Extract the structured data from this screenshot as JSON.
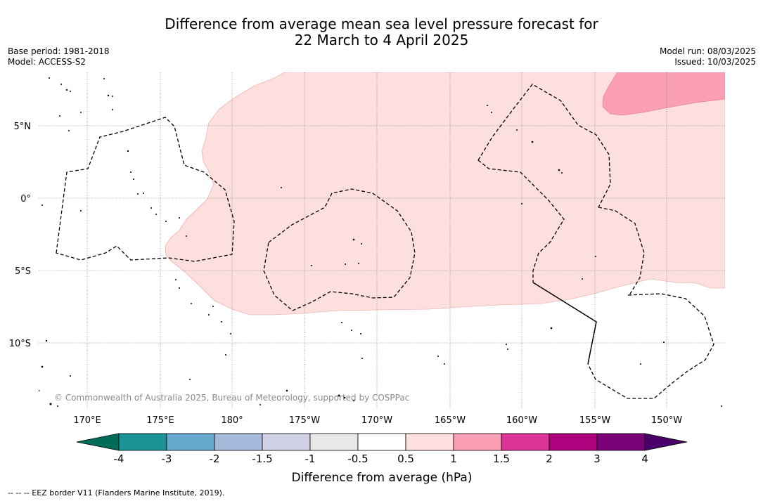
{
  "title": {
    "line1": "Difference from average mean sea level pressure forecast for",
    "line2": "22 March to 4 April 2025"
  },
  "meta_left": {
    "base_period": "Base period: 1981-2018",
    "model": "Model: ACCESS-S2"
  },
  "meta_right": {
    "model_run": "Model run: 08/03/2025",
    "issued": "Issued: 10/03/2025"
  },
  "map": {
    "lat_labels": [
      "5°N",
      "0°",
      "5°S",
      "10°S"
    ],
    "lon_labels": [
      "170°E",
      "175°E",
      "180°",
      "175°W",
      "170°W",
      "165°W",
      "160°W",
      "155°W",
      "150°W"
    ],
    "credit": "© Commonwealth of Australia 2025, Bureau of Meteorology, supported by COSPPac",
    "anomaly_fill_colors": {
      "0.5 to 1": "#fddfde",
      "1 to 1.5": "#fa9fb5"
    }
  },
  "colorbar": {
    "title": "Difference from average (hPa)",
    "tick_labels": [
      "-4",
      "-3",
      "-2",
      "-1.5",
      "-1",
      "-0.5",
      "0.5",
      "1",
      "1.5",
      "2",
      "3",
      "4"
    ],
    "colors": [
      "#1b9396",
      "#67a9cf",
      "#a6b9db",
      "#d0d1e6",
      "#e8e8e8",
      "#ffffff",
      "#fddfde",
      "#fa9fb5",
      "#dd3497",
      "#ae017e",
      "#7a0177"
    ],
    "under_color": "#016c59",
    "over_color": "#49006a"
  },
  "footer": "--  --  -- EEZ border V11 (Flanders Marine Institute, 2019)."
}
